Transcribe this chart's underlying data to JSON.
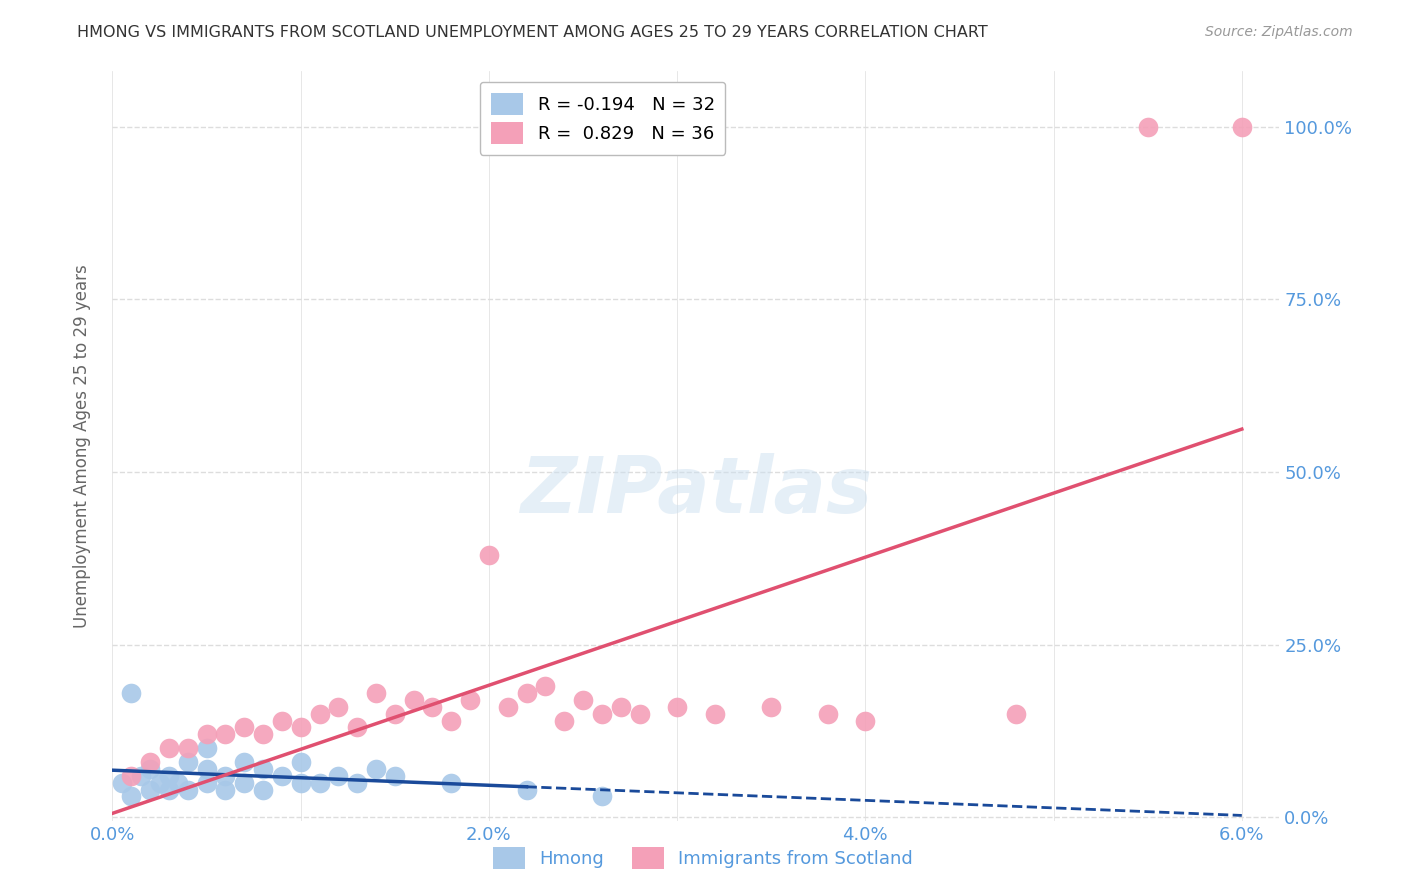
{
  "title": "HMONG VS IMMIGRANTS FROM SCOTLAND UNEMPLOYMENT AMONG AGES 25 TO 29 YEARS CORRELATION CHART",
  "source": "Source: ZipAtlas.com",
  "ylabel": "Unemployment Among Ages 25 to 29 years",
  "xlim": [
    0.0,
    0.062
  ],
  "ylim": [
    -0.005,
    1.08
  ],
  "x_ticks": [
    0.0,
    0.01,
    0.02,
    0.03,
    0.04,
    0.05,
    0.06
  ],
  "x_tick_labels": [
    "0.0%",
    "",
    "2.0%",
    "",
    "4.0%",
    "",
    "6.0%"
  ],
  "y_ticks": [
    0.0,
    0.25,
    0.5,
    0.75,
    1.0
  ],
  "y_tick_labels": [
    "0.0%",
    "25.0%",
    "50.0%",
    "75.0%",
    "100.0%"
  ],
  "legend_label1": "Hmong",
  "legend_label2": "Immigrants from Scotland",
  "watermark": "ZIPatlas",
  "hmong_color": "#a8c8e8",
  "scotland_color": "#f4a0b8",
  "hmong_line_color": "#1a4a9a",
  "scotland_line_color": "#e05070",
  "axis_label_color": "#5599dd",
  "title_color": "#333333",
  "grid_color": "#dddddd",
  "background_color": "#ffffff",
  "hmong_x": [
    0.0005,
    0.001,
    0.001,
    0.0015,
    0.002,
    0.002,
    0.0025,
    0.003,
    0.003,
    0.0035,
    0.004,
    0.004,
    0.005,
    0.005,
    0.005,
    0.006,
    0.006,
    0.007,
    0.007,
    0.008,
    0.008,
    0.009,
    0.01,
    0.01,
    0.011,
    0.012,
    0.013,
    0.014,
    0.015,
    0.018,
    0.022,
    0.026
  ],
  "hmong_y": [
    0.05,
    0.03,
    0.18,
    0.06,
    0.04,
    0.07,
    0.05,
    0.04,
    0.06,
    0.05,
    0.04,
    0.08,
    0.05,
    0.07,
    0.1,
    0.04,
    0.06,
    0.05,
    0.08,
    0.04,
    0.07,
    0.06,
    0.05,
    0.08,
    0.05,
    0.06,
    0.05,
    0.07,
    0.06,
    0.05,
    0.04,
    0.03
  ],
  "scotland_x": [
    0.001,
    0.002,
    0.003,
    0.004,
    0.005,
    0.006,
    0.007,
    0.008,
    0.009,
    0.01,
    0.011,
    0.012,
    0.013,
    0.014,
    0.015,
    0.016,
    0.017,
    0.018,
    0.019,
    0.02,
    0.021,
    0.022,
    0.023,
    0.024,
    0.025,
    0.026,
    0.027,
    0.028,
    0.03,
    0.032,
    0.035,
    0.038,
    0.04,
    0.048,
    0.055,
    0.06
  ],
  "scotland_y": [
    0.06,
    0.08,
    0.1,
    0.1,
    0.12,
    0.12,
    0.13,
    0.12,
    0.14,
    0.13,
    0.15,
    0.16,
    0.13,
    0.18,
    0.15,
    0.17,
    0.16,
    0.14,
    0.17,
    0.38,
    0.16,
    0.18,
    0.19,
    0.14,
    0.17,
    0.15,
    0.16,
    0.15,
    0.16,
    0.15,
    0.16,
    0.15,
    0.14,
    0.15,
    1.0,
    1.0
  ],
  "hmong_r": -0.194,
  "hmong_n": 32,
  "scotland_r": 0.829,
  "scotland_n": 36
}
